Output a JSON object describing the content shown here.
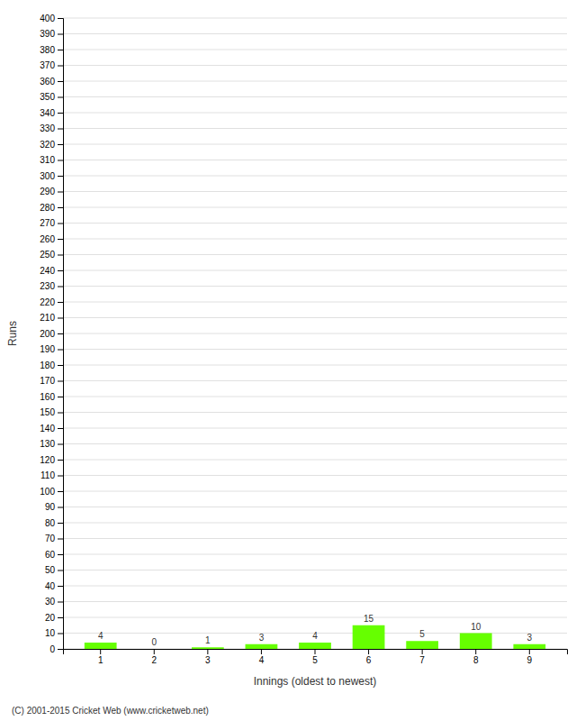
{
  "chart_data": {
    "type": "bar",
    "categories": [
      "1",
      "2",
      "3",
      "4",
      "5",
      "6",
      "7",
      "8",
      "9"
    ],
    "values": [
      4,
      0,
      1,
      3,
      4,
      15,
      5,
      10,
      3
    ],
    "color": "#66ff00",
    "xlabel": "Innings (oldest to newest)",
    "ylabel": "Runs",
    "ylim": [
      0,
      400
    ],
    "yticks": [
      0,
      10,
      20,
      30,
      40,
      50,
      60,
      70,
      80,
      90,
      100,
      110,
      120,
      130,
      140,
      150,
      160,
      170,
      180,
      190,
      200,
      210,
      220,
      230,
      240,
      250,
      260,
      270,
      280,
      290,
      300,
      310,
      320,
      330,
      340,
      350,
      360,
      370,
      380,
      390,
      400
    ],
    "grid": true,
    "data_labels": true,
    "annotations": [
      "(C) 2001-2015 Cricket Web (www.cricketweb.net)"
    ]
  }
}
